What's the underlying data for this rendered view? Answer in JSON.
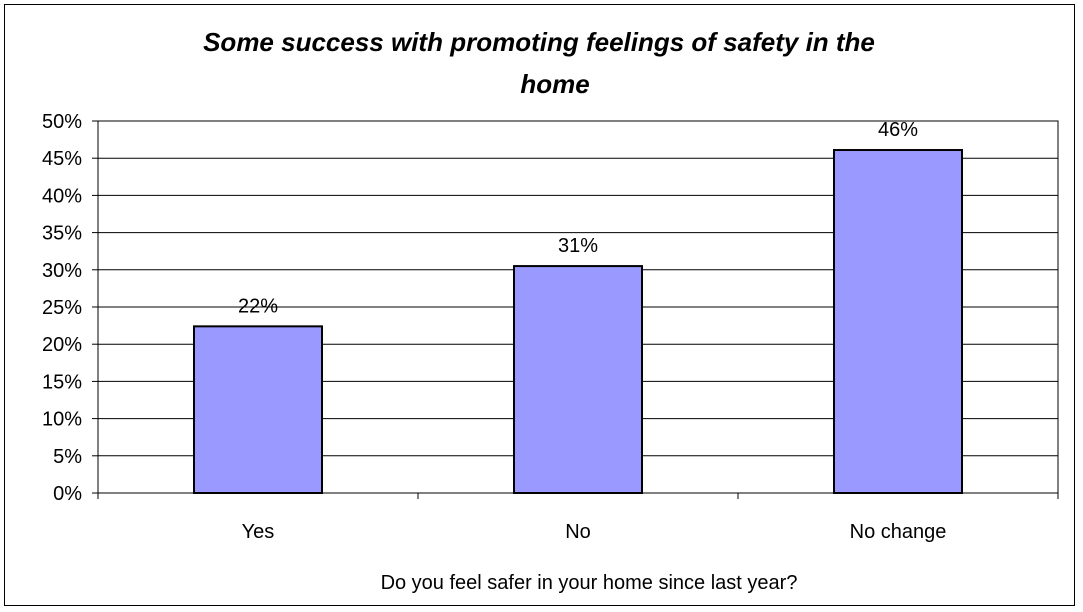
{
  "chart_data": {
    "type": "bar",
    "title_lines": [
      "Some success with promoting feelings of safety in the",
      "home"
    ],
    "xlabel": "Do you feel safer in your home since last year?",
    "ylabel": "",
    "categories": [
      "Yes",
      "No",
      "No change"
    ],
    "values": [
      22.4,
      30.5,
      46.1
    ],
    "data_labels": [
      "22%",
      "31%",
      "46%"
    ],
    "ylim": [
      0,
      50
    ],
    "yticks": [
      0,
      5,
      10,
      15,
      20,
      25,
      30,
      35,
      40,
      45,
      50
    ],
    "ytick_labels": [
      "0%",
      "5%",
      "10%",
      "15%",
      "20%",
      "25%",
      "30%",
      "35%",
      "40%",
      "45%",
      "50%"
    ],
    "grid": true,
    "legend": "none",
    "bar_color": "#9999ff",
    "bar_edge_color": "#000000"
  }
}
